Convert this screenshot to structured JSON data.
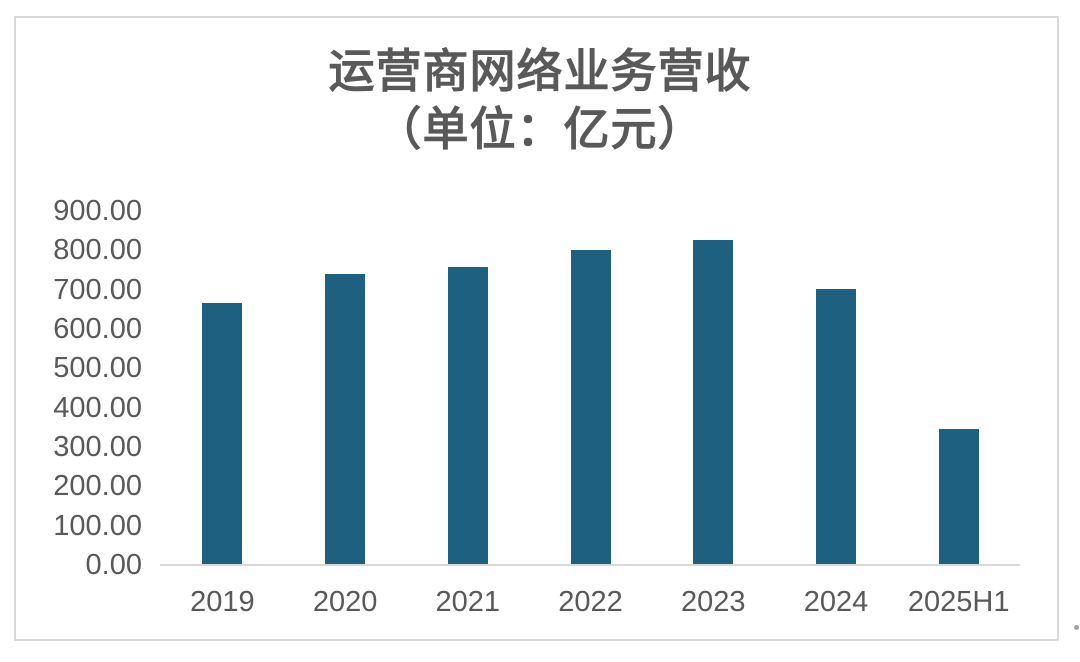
{
  "chart_data": {
    "type": "bar",
    "title": "运营商网络业务营收",
    "subtitle": "（单位：亿元）",
    "unit": "亿元",
    "categories": [
      "2019",
      "2020",
      "2021",
      "2022",
      "2023",
      "2024",
      "2025H1"
    ],
    "values": [
      665,
      740,
      757,
      801,
      827,
      703,
      346
    ],
    "xlabel": "",
    "ylabel": "",
    "ylim": [
      0,
      900
    ],
    "ytick_values": [
      900,
      800,
      700,
      600,
      500,
      400,
      300,
      200,
      100,
      0
    ],
    "ytick_labels": [
      "900.00",
      "800.00",
      "700.00",
      "600.00",
      "500.00",
      "400.00",
      "300.00",
      "200.00",
      "100.00",
      "0.00"
    ],
    "grid": false,
    "legend": "none",
    "colors": {
      "bar": "#1d6080",
      "title_text": "#595959",
      "axis_text": "#595959",
      "axis_line": "#d9d9d9",
      "frame_border": "#d9d9d9",
      "background": "#ffffff"
    }
  }
}
